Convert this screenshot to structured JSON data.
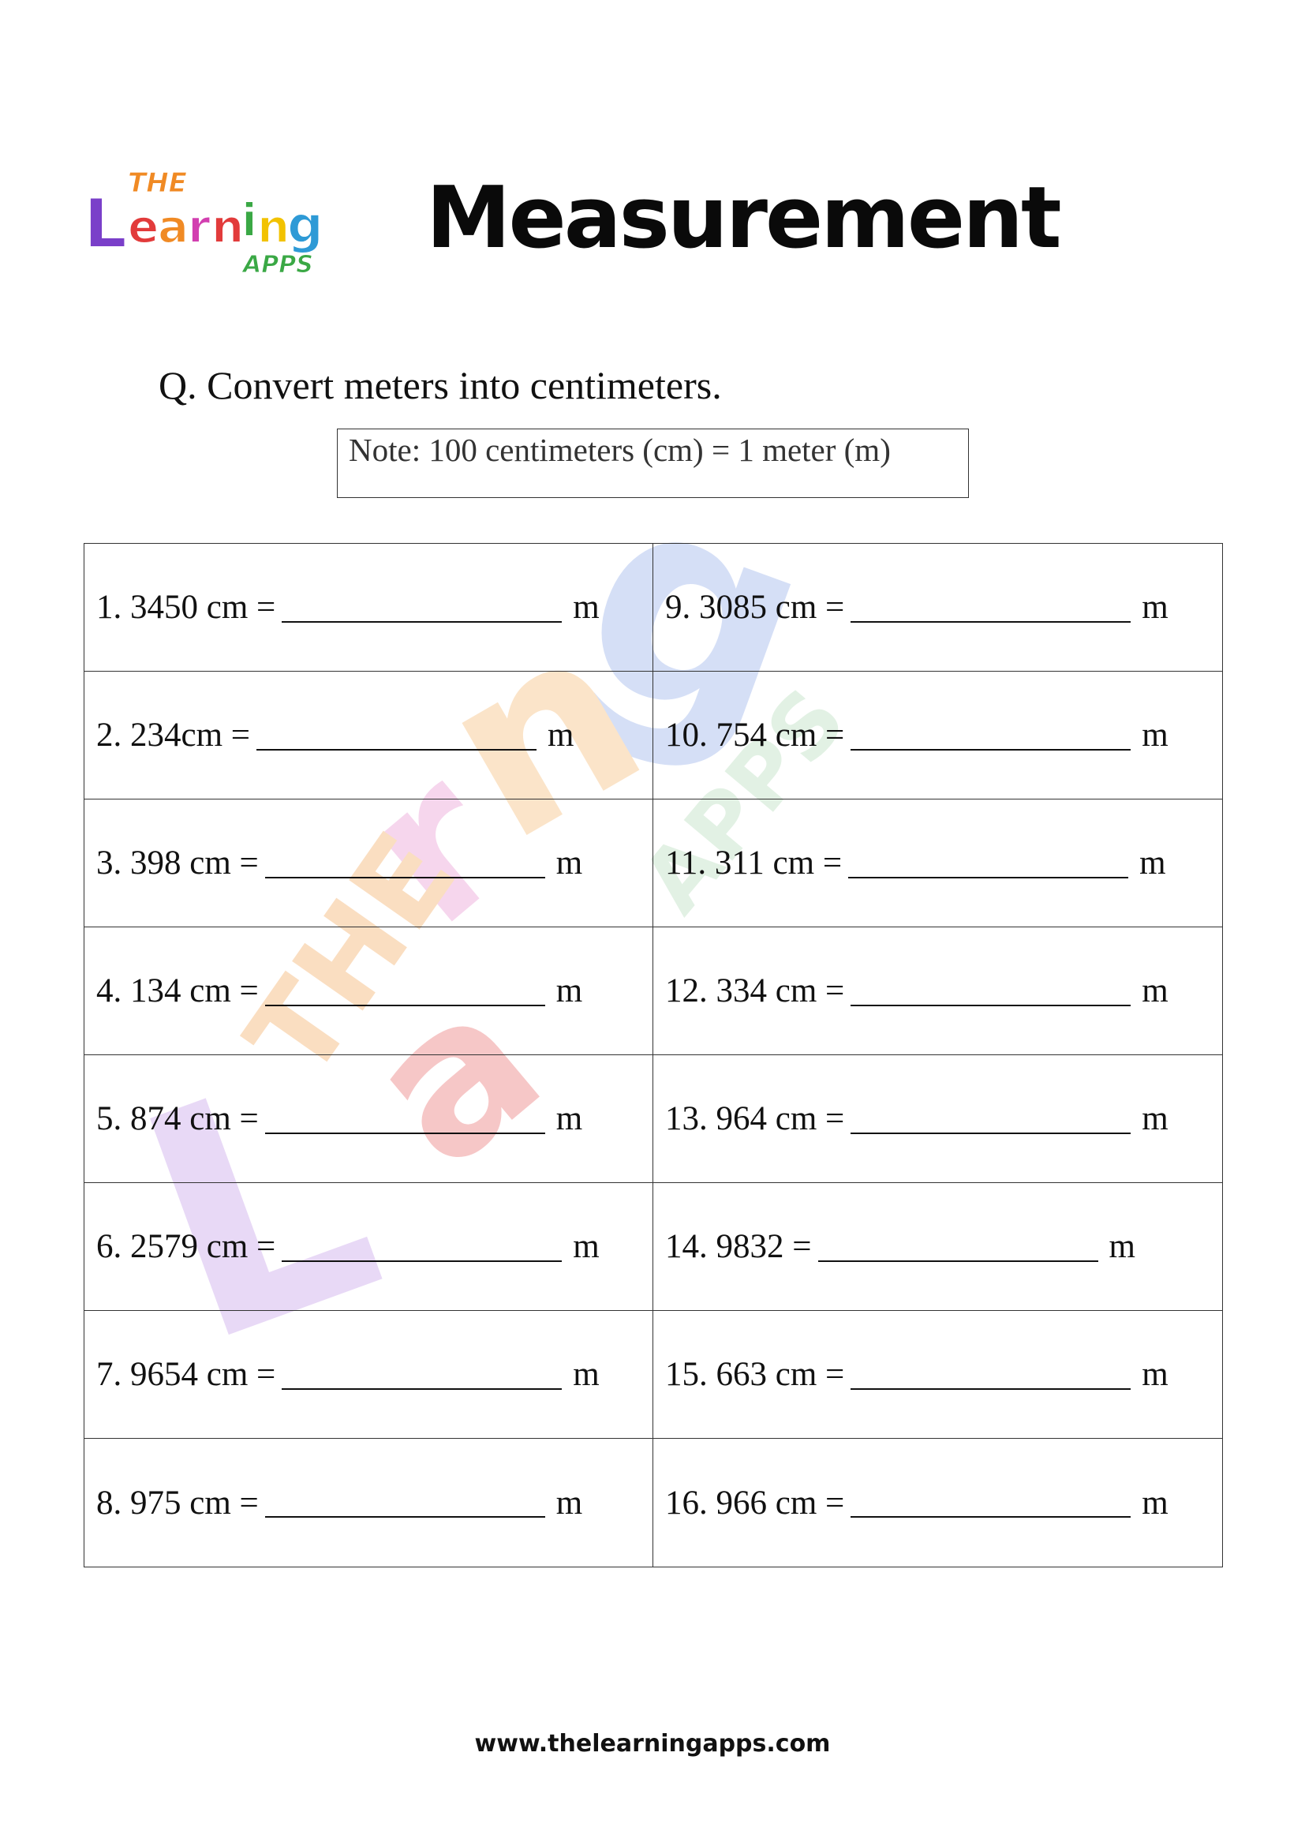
{
  "header": {
    "logo_text": {
      "top": "THE",
      "main": "Learning",
      "bottom": "APPS"
    },
    "title": "Measurement"
  },
  "question": "Q. Convert meters into centimeters.",
  "note": "Note: 100 centimeters (cm) = 1 meter (m)",
  "unit_label": "m",
  "items": [
    "1. 3450 cm =",
    "9. 3085 cm =",
    "2. 234cm =",
    "10. 754 cm =",
    "3. 398 cm =",
    "11. 311 cm =",
    "4. 134 cm =",
    "12. 334 cm =",
    "5. 874 cm =",
    "13. 964 cm =",
    "6. 2579 cm =",
    "14. 9832 =",
    "7. 9654 cm =",
    "15. 663 cm =",
    "8. 975 cm =",
    "16. 966 cm ="
  ],
  "footer": "www.thelearningapps.com",
  "colors": {
    "logo": [
      "#e23b3b",
      "#f08a24",
      "#f2c200",
      "#3aa845",
      "#2e9ad6",
      "#7a3fc9",
      "#d23fb0"
    ]
  }
}
